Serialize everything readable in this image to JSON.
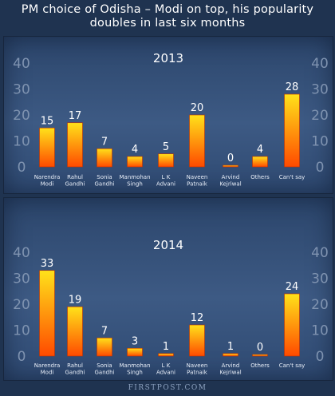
{
  "title_line1": "PM choice of Odisha – Modi on top, his popularity",
  "title_line2": "doubles in last six months",
  "footer": "FIRSTPOST.COM",
  "colors": {
    "bar_top": "#ffe21a",
    "bar_bottom": "#ff4a00",
    "axis_label": "#7f93b0",
    "value_label": "#ffffff"
  },
  "chart_data": [
    {
      "type": "bar",
      "title": "2013",
      "categories": [
        [
          "Narendra",
          "Modi"
        ],
        [
          "Rahul",
          "Gandhi"
        ],
        [
          "Sonia",
          "Gandhi"
        ],
        [
          "Manmohan",
          "Singh"
        ],
        [
          "L K",
          "Advani"
        ],
        [
          "Naveen",
          "Patnaik"
        ],
        [
          "Arvind",
          "Kejriwal"
        ],
        [
          "Others"
        ],
        [
          "Can't say"
        ]
      ],
      "values": [
        15,
        17,
        7,
        4,
        5,
        20,
        0,
        4,
        28
      ],
      "yticks": [
        "0",
        "10",
        "20",
        "30",
        "40"
      ],
      "ylim": [
        0,
        40
      ],
      "grid": false
    },
    {
      "type": "bar",
      "title": "2014",
      "categories": [
        [
          "Narendra",
          "Modi"
        ],
        [
          "Rahul",
          "Gandhi"
        ],
        [
          "Sonia",
          "Gandhi"
        ],
        [
          "Manmohan",
          "Singh"
        ],
        [
          "L K",
          "Advani"
        ],
        [
          "Naveen",
          "Patnaik"
        ],
        [
          "Arvind",
          "Kejriwal"
        ],
        [
          "Others"
        ],
        [
          "Can't say"
        ]
      ],
      "values": [
        33,
        19,
        7,
        3,
        1,
        12,
        1,
        0,
        24
      ],
      "yticks": [
        "0",
        "10",
        "20",
        "30",
        "40"
      ],
      "ylim": [
        0,
        40
      ],
      "grid": false
    }
  ]
}
